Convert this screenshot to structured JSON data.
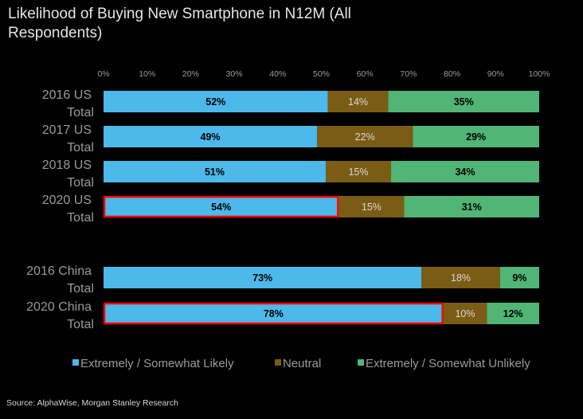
{
  "chart_data": {
    "type": "bar",
    "orientation": "horizontal",
    "stacked": true,
    "title": "Likelihood of Buying New Smartphone in N12M (All Respondents)",
    "categories": [
      "2016 US Total",
      "2017 US Total",
      "2018 US Total",
      "2020 US Total",
      "2016 China Total",
      "2020 China Total"
    ],
    "category_lines": [
      [
        "2016 US",
        "Total"
      ],
      [
        "2017 US",
        "Total"
      ],
      [
        "2018 US",
        "Total"
      ],
      [
        "2020 US",
        "Total"
      ],
      [
        "2016 China",
        "Total"
      ],
      [
        "2020 China",
        "Total"
      ]
    ],
    "series": [
      {
        "name": "Extremely / Somewhat Likely",
        "color": "#4db8ea",
        "label_color": "#000000",
        "values": [
          52,
          49,
          51,
          54,
          73,
          78
        ]
      },
      {
        "name": "Neutral",
        "color": "#7a5c14",
        "label_color": "#d9d9d9",
        "values": [
          14,
          22,
          15,
          15,
          18,
          10
        ]
      },
      {
        "name": "Extremely / Somewhat Unlikely",
        "color": "#50b575",
        "label_color": "#000000",
        "values": [
          35,
          29,
          34,
          31,
          9,
          12
        ]
      }
    ],
    "xlim": [
      0,
      100
    ],
    "x_ticks": [
      "0%",
      "10%",
      "20%",
      "30%",
      "40%",
      "50%",
      "60%",
      "70%",
      "80%",
      "90%",
      "100%"
    ],
    "highlighted": [
      {
        "category": "2020 US Total",
        "series": "Extremely / Somewhat Likely"
      },
      {
        "category": "2020 China Total",
        "series": "Extremely / Somewhat Likely"
      }
    ],
    "highlight_color": "#ff0000",
    "grid": false,
    "legend_position": "bottom",
    "background": "#000000"
  },
  "source": "Source: AlphaWise, Morgan Stanley Research"
}
